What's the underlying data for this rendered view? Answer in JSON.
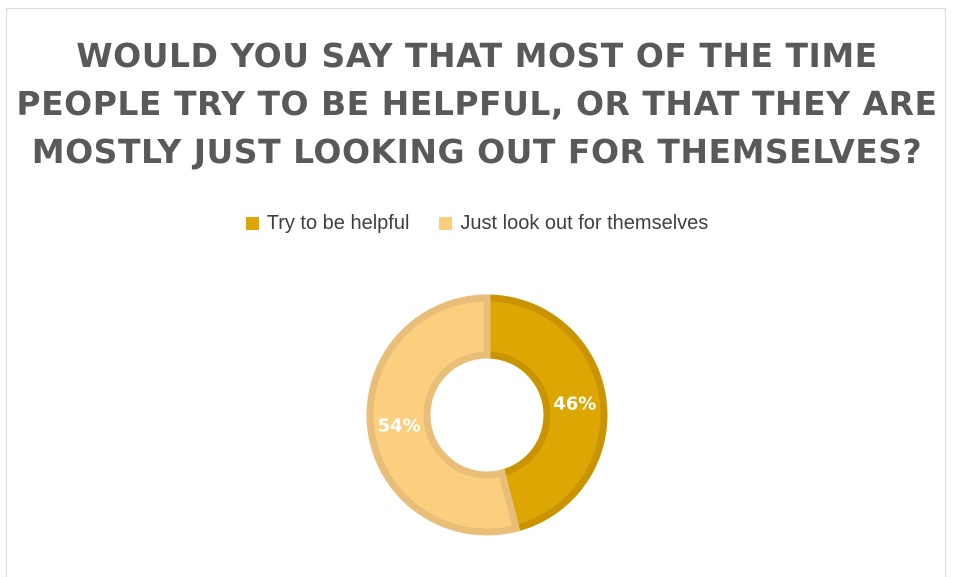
{
  "chart_data": {
    "type": "donut",
    "title_lines": [
      "WOULD YOU SAY THAT MOST OF THE TIME",
      "PEOPLE TRY TO BE HELPFUL, OR THAT THEY ARE",
      "MOSTLY JUST LOOKING OUT FOR THEMSELVES?"
    ],
    "legend_position": "top",
    "slices": [
      {
        "label": "Try to be helpful",
        "value": 46,
        "display": "46%",
        "color": "#DDA703",
        "stroke": "#C99400"
      },
      {
        "label": "Just look out for themselves",
        "value": 54,
        "display": "54%",
        "color": "#FCCF7F",
        "stroke": "#E8BE79"
      }
    ]
  }
}
